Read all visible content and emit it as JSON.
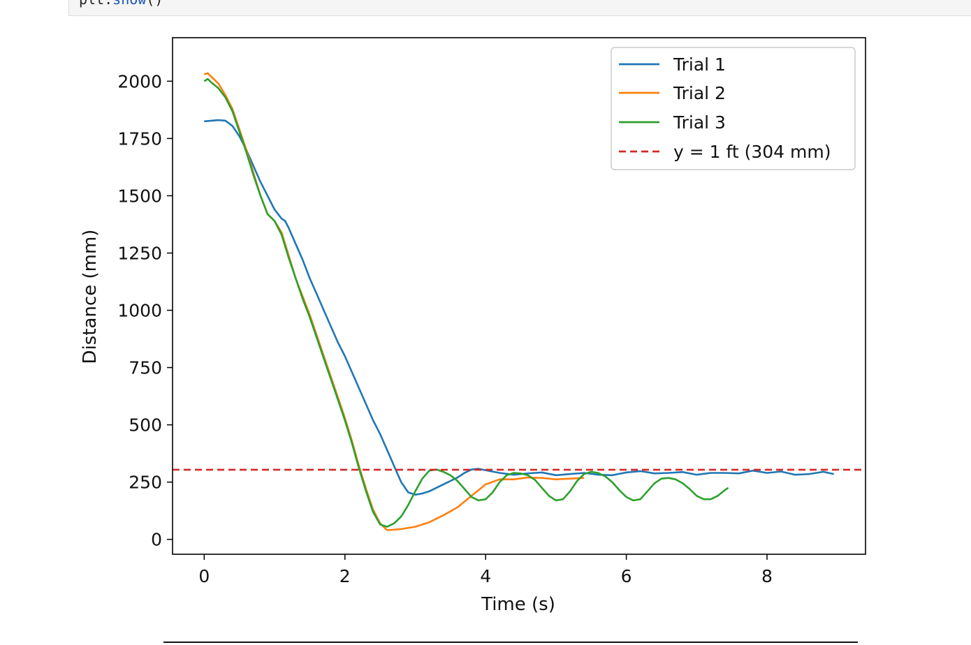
{
  "code_cell": {
    "object": "plt",
    "dot": ".",
    "method": "show",
    "parens": "()"
  },
  "chart_data": {
    "type": "line",
    "title": "",
    "xlabel": "Time (s)",
    "ylabel": "Distance (mm)",
    "xlim": [
      -0.45,
      9.4
    ],
    "ylim": [
      -65,
      2190
    ],
    "xticks": [
      0,
      2,
      4,
      6,
      8
    ],
    "yticks": [
      0,
      250,
      500,
      750,
      1000,
      1250,
      1500,
      1750,
      2000
    ],
    "grid": false,
    "legend_position": "top-right",
    "series": [
      {
        "name": "Trial 1",
        "color": "#1f77b4",
        "points": [
          [
            0,
            1825
          ],
          [
            0.2,
            1830
          ],
          [
            0.3,
            1828
          ],
          [
            0.4,
            1805
          ],
          [
            0.5,
            1760
          ],
          [
            0.6,
            1700
          ],
          [
            0.7,
            1630
          ],
          [
            0.8,
            1560
          ],
          [
            0.9,
            1500
          ],
          [
            1.0,
            1440
          ],
          [
            1.1,
            1400
          ],
          [
            1.15,
            1390
          ],
          [
            1.2,
            1360
          ],
          [
            1.3,
            1290
          ],
          [
            1.4,
            1220
          ],
          [
            1.5,
            1140
          ],
          [
            1.6,
            1070
          ],
          [
            1.7,
            1000
          ],
          [
            1.8,
            930
          ],
          [
            1.9,
            860
          ],
          [
            2.0,
            800
          ],
          [
            2.1,
            730
          ],
          [
            2.2,
            660
          ],
          [
            2.3,
            590
          ],
          [
            2.4,
            520
          ],
          [
            2.5,
            460
          ],
          [
            2.6,
            390
          ],
          [
            2.7,
            320
          ],
          [
            2.8,
            250
          ],
          [
            2.9,
            205
          ],
          [
            3.0,
            195
          ],
          [
            3.1,
            200
          ],
          [
            3.2,
            210
          ],
          [
            3.3,
            225
          ],
          [
            3.4,
            240
          ],
          [
            3.5,
            255
          ],
          [
            3.6,
            270
          ],
          [
            3.7,
            290
          ],
          [
            3.8,
            305
          ],
          [
            3.9,
            308
          ],
          [
            4.0,
            302
          ],
          [
            4.2,
            290
          ],
          [
            4.4,
            282
          ],
          [
            4.6,
            288
          ],
          [
            4.8,
            292
          ],
          [
            5.0,
            280
          ],
          [
            5.2,
            285
          ],
          [
            5.4,
            290
          ],
          [
            5.6,
            282
          ],
          [
            5.8,
            280
          ],
          [
            6.0,
            292
          ],
          [
            6.2,
            298
          ],
          [
            6.4,
            288
          ],
          [
            6.6,
            290
          ],
          [
            6.8,
            294
          ],
          [
            7.0,
            282
          ],
          [
            7.2,
            290
          ],
          [
            7.4,
            290
          ],
          [
            7.6,
            288
          ],
          [
            7.8,
            300
          ],
          [
            8.0,
            290
          ],
          [
            8.2,
            296
          ],
          [
            8.4,
            282
          ],
          [
            8.6,
            285
          ],
          [
            8.8,
            295
          ],
          [
            8.95,
            285
          ]
        ]
      },
      {
        "name": "Trial 2",
        "color": "#ff7f0e",
        "points": [
          [
            0,
            2030
          ],
          [
            0.05,
            2035
          ],
          [
            0.1,
            2020
          ],
          [
            0.2,
            1990
          ],
          [
            0.3,
            1940
          ],
          [
            0.4,
            1880
          ],
          [
            0.5,
            1790
          ],
          [
            0.6,
            1700
          ],
          [
            0.7,
            1600
          ],
          [
            0.8,
            1500
          ],
          [
            0.9,
            1420
          ],
          [
            1.0,
            1390
          ],
          [
            1.1,
            1340
          ],
          [
            1.2,
            1240
          ],
          [
            1.3,
            1140
          ],
          [
            1.4,
            1060
          ],
          [
            1.5,
            980
          ],
          [
            1.6,
            890
          ],
          [
            1.7,
            800
          ],
          [
            1.8,
            710
          ],
          [
            1.9,
            620
          ],
          [
            2.0,
            530
          ],
          [
            2.1,
            430
          ],
          [
            2.2,
            320
          ],
          [
            2.3,
            220
          ],
          [
            2.4,
            130
          ],
          [
            2.5,
            70
          ],
          [
            2.6,
            40
          ],
          [
            2.8,
            45
          ],
          [
            3.0,
            55
          ],
          [
            3.2,
            75
          ],
          [
            3.4,
            105
          ],
          [
            3.6,
            140
          ],
          [
            3.8,
            190
          ],
          [
            4.0,
            240
          ],
          [
            4.2,
            262
          ],
          [
            4.4,
            262
          ],
          [
            4.6,
            270
          ],
          [
            4.8,
            268
          ],
          [
            5.0,
            262
          ],
          [
            5.2,
            265
          ],
          [
            5.4,
            268
          ]
        ]
      },
      {
        "name": "Trial 3",
        "color": "#2ca02c",
        "points": [
          [
            0,
            2000
          ],
          [
            0.05,
            2010
          ],
          [
            0.1,
            1995
          ],
          [
            0.2,
            1970
          ],
          [
            0.3,
            1930
          ],
          [
            0.4,
            1870
          ],
          [
            0.5,
            1780
          ],
          [
            0.6,
            1690
          ],
          [
            0.7,
            1590
          ],
          [
            0.8,
            1500
          ],
          [
            0.9,
            1420
          ],
          [
            1.0,
            1390
          ],
          [
            1.1,
            1330
          ],
          [
            1.2,
            1230
          ],
          [
            1.3,
            1140
          ],
          [
            1.4,
            1050
          ],
          [
            1.5,
            970
          ],
          [
            1.6,
            880
          ],
          [
            1.7,
            790
          ],
          [
            1.8,
            700
          ],
          [
            1.9,
            610
          ],
          [
            2.0,
            520
          ],
          [
            2.1,
            420
          ],
          [
            2.2,
            310
          ],
          [
            2.3,
            210
          ],
          [
            2.4,
            120
          ],
          [
            2.5,
            65
          ],
          [
            2.6,
            55
          ],
          [
            2.7,
            70
          ],
          [
            2.8,
            100
          ],
          [
            2.9,
            150
          ],
          [
            3.0,
            210
          ],
          [
            3.1,
            265
          ],
          [
            3.2,
            300
          ],
          [
            3.3,
            305
          ],
          [
            3.4,
            295
          ],
          [
            3.5,
            280
          ],
          [
            3.6,
            255
          ],
          [
            3.7,
            220
          ],
          [
            3.8,
            185
          ],
          [
            3.9,
            170
          ],
          [
            4.0,
            175
          ],
          [
            4.1,
            205
          ],
          [
            4.2,
            250
          ],
          [
            4.3,
            280
          ],
          [
            4.4,
            290
          ],
          [
            4.5,
            288
          ],
          [
            4.6,
            280
          ],
          [
            4.7,
            260
          ],
          [
            4.8,
            225
          ],
          [
            4.9,
            190
          ],
          [
            5.0,
            170
          ],
          [
            5.1,
            175
          ],
          [
            5.2,
            210
          ],
          [
            5.3,
            255
          ],
          [
            5.4,
            285
          ],
          [
            5.5,
            295
          ],
          [
            5.6,
            290
          ],
          [
            5.7,
            275
          ],
          [
            5.8,
            250
          ],
          [
            5.9,
            215
          ],
          [
            6.0,
            185
          ],
          [
            6.1,
            170
          ],
          [
            6.2,
            175
          ],
          [
            6.3,
            210
          ],
          [
            6.4,
            245
          ],
          [
            6.5,
            265
          ],
          [
            6.6,
            268
          ],
          [
            6.7,
            262
          ],
          [
            6.8,
            245
          ],
          [
            6.9,
            220
          ],
          [
            7.0,
            190
          ],
          [
            7.1,
            175
          ],
          [
            7.2,
            175
          ],
          [
            7.3,
            190
          ],
          [
            7.4,
            215
          ],
          [
            7.45,
            225
          ]
        ]
      },
      {
        "name": "y = 1 ft (304 mm)",
        "color": "#d62728",
        "dashed": true,
        "horizontal_line_y": 304
      }
    ]
  }
}
